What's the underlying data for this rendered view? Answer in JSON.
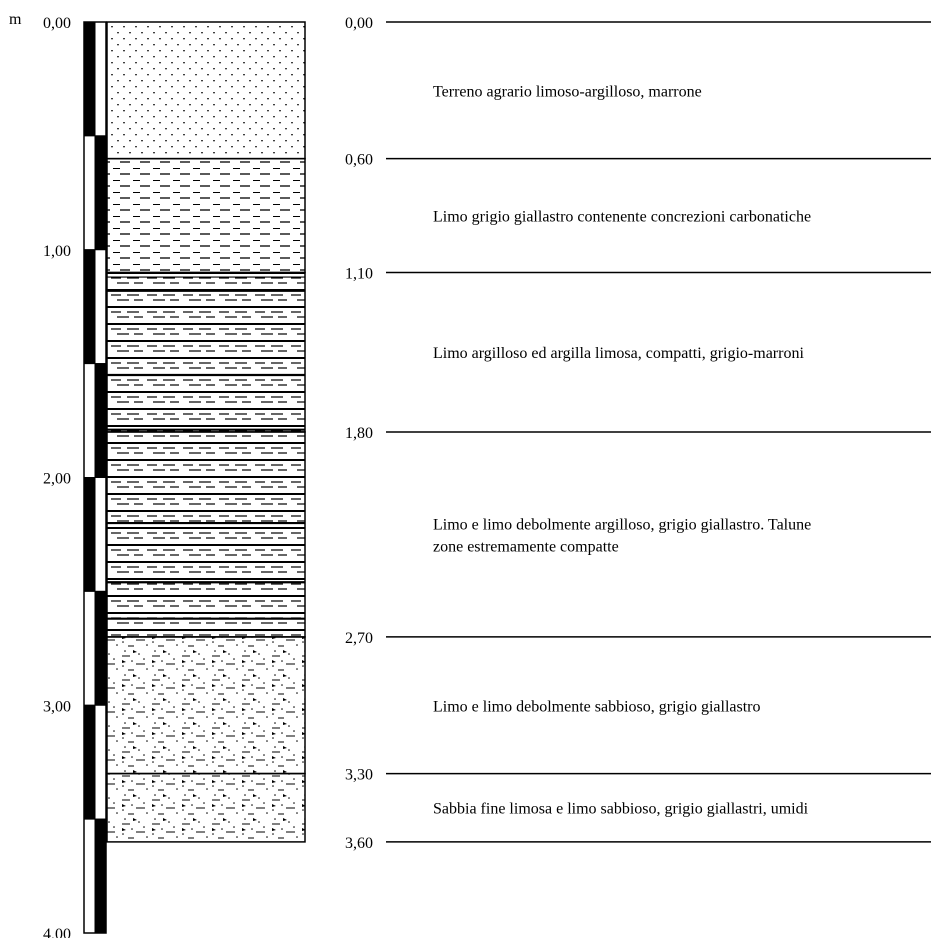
{
  "scale": {
    "unit_label": "m",
    "ticks": [
      {
        "depth": 0,
        "label": "0,00"
      },
      {
        "depth": 1,
        "label": "1,00"
      },
      {
        "depth": 2,
        "label": "2,00"
      },
      {
        "depth": 3,
        "label": "3,00"
      },
      {
        "depth": 4,
        "label": "4,00"
      }
    ],
    "max_depth": 4.0
  },
  "boundaries": [
    {
      "depth": 0.0,
      "label": "0,00"
    },
    {
      "depth": 0.6,
      "label": "0,60"
    },
    {
      "depth": 1.1,
      "label": "1,10"
    },
    {
      "depth": 1.8,
      "label": "1,80"
    },
    {
      "depth": 2.7,
      "label": "2,70"
    },
    {
      "depth": 3.3,
      "label": "3,30"
    },
    {
      "depth": 3.6,
      "label": "3,60"
    }
  ],
  "layers": [
    {
      "top": 0.0,
      "bottom": 0.6,
      "pattern": "dots",
      "description": [
        "Terreno agrario limoso-argilloso, marrone"
      ]
    },
    {
      "top": 0.6,
      "bottom": 1.1,
      "pattern": "dash",
      "description": [
        "Limo grigio giallastro contenente concrezioni carbonatiche"
      ]
    },
    {
      "top": 1.1,
      "bottom": 1.8,
      "pattern": "clay-silt",
      "description": [
        "Limo argilloso ed argilla limosa, compatti, grigio-marroni"
      ]
    },
    {
      "top": 1.8,
      "bottom": 2.7,
      "pattern": "clay-silt",
      "description": [
        "Limo  e limo debolmente argilloso, grigio giallastro. Talune",
        "zone estremamente compatte"
      ]
    },
    {
      "top": 2.7,
      "bottom": 3.3,
      "pattern": "sandy-silt",
      "description": [
        "Limo  e limo debolmente sabbioso, grigio giallastro"
      ]
    },
    {
      "top": 3.3,
      "bottom": 3.6,
      "pattern": "sandy-silt",
      "description": [
        "Sabbia fine limosa e limo sabbioso, grigio giallastri, umidi"
      ]
    }
  ],
  "colors": {
    "ink": "#000000",
    "paper": "#ffffff"
  }
}
